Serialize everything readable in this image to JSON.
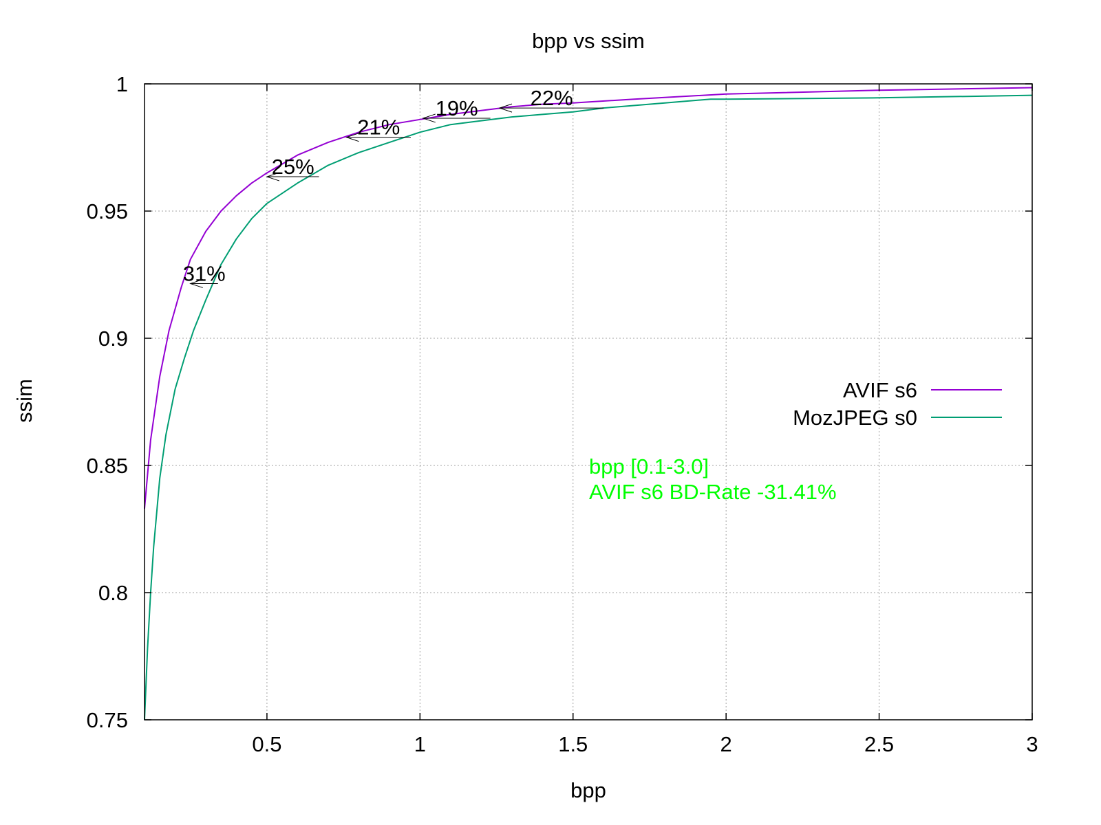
{
  "chart_data": {
    "type": "line",
    "title": "bpp vs ssim",
    "xlabel": "bpp",
    "ylabel": "ssim",
    "xlim": [
      0.1,
      3.0
    ],
    "ylim": [
      0.75,
      1.0
    ],
    "xticks": [
      "0.5",
      "1",
      "1.5",
      "2",
      "2.5",
      "3"
    ],
    "xtick_values": [
      0.5,
      1.0,
      1.5,
      2.0,
      2.5,
      3.0
    ],
    "yticks": [
      "0.75",
      "0.8",
      "0.85",
      "0.9",
      "0.95",
      "1"
    ],
    "ytick_values": [
      0.75,
      0.8,
      0.85,
      0.9,
      0.95,
      1.0
    ],
    "grid": true,
    "legend_position": "right",
    "series": [
      {
        "name": "AVIF s6",
        "color": "#9400d3",
        "x": [
          0.1,
          0.12,
          0.15,
          0.18,
          0.22,
          0.25,
          0.3,
          0.35,
          0.4,
          0.45,
          0.5,
          0.6,
          0.7,
          0.8,
          0.9,
          1.0,
          1.1,
          1.2,
          1.3,
          1.4,
          1.5,
          1.7,
          2.0,
          2.5,
          3.0
        ],
        "y": [
          0.833,
          0.86,
          0.885,
          0.903,
          0.92,
          0.931,
          0.942,
          0.95,
          0.956,
          0.961,
          0.965,
          0.972,
          0.977,
          0.981,
          0.984,
          0.986,
          0.988,
          0.9895,
          0.991,
          0.992,
          0.9925,
          0.994,
          0.996,
          0.9975,
          0.9985
        ]
      },
      {
        "name": "MozJPEG s0",
        "color": "#009e73",
        "x": [
          0.1,
          0.11,
          0.12,
          0.13,
          0.15,
          0.17,
          0.2,
          0.23,
          0.26,
          0.3,
          0.35,
          0.4,
          0.45,
          0.5,
          0.6,
          0.7,
          0.8,
          0.9,
          1.0,
          1.1,
          1.2,
          1.3,
          1.4,
          1.5,
          1.6,
          1.8,
          1.95,
          2.0,
          2.5,
          3.0
        ],
        "y": [
          0.75,
          0.778,
          0.8,
          0.818,
          0.845,
          0.862,
          0.88,
          0.892,
          0.903,
          0.915,
          0.929,
          0.939,
          0.947,
          0.953,
          0.961,
          0.968,
          0.973,
          0.977,
          0.981,
          0.984,
          0.9855,
          0.987,
          0.988,
          0.989,
          0.9905,
          0.9925,
          0.994,
          0.994,
          0.9945,
          0.9955
        ]
      }
    ],
    "annotations": [
      {
        "label": "31%",
        "y": 0.9215,
        "x_from": 0.34,
        "x_to": 0.25
      },
      {
        "label": "25%",
        "y": 0.9635,
        "x_from": 0.67,
        "x_to": 0.5
      },
      {
        "label": "21%",
        "y": 0.979,
        "x_from": 0.97,
        "x_to": 0.76
      },
      {
        "label": "19%",
        "y": 0.9865,
        "x_from": 1.23,
        "x_to": 1.01
      },
      {
        "label": "22%",
        "y": 0.9905,
        "x_from": 1.6,
        "x_to": 1.26
      }
    ],
    "notes": [
      "bpp [0.1-3.0]",
      "AVIF s6 BD-Rate -31.41%"
    ],
    "notes_color": "#00ff00",
    "grid_color": "#a0a0a0",
    "arrow_color": "#000000"
  }
}
